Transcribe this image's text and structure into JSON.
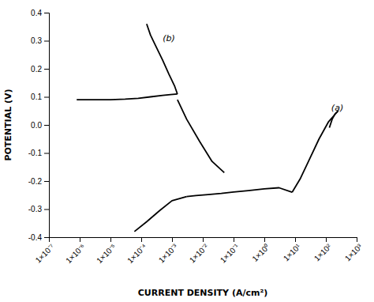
{
  "chart_data": {
    "type": "line",
    "xlabel": "CURRENT DENSITY (A/cm²)",
    "ylabel": "POTENTIAL (V)",
    "log": "x",
    "grid": false,
    "color": "#000000",
    "xlim": [
      1e-07,
      1000.0
    ],
    "ylim": [
      -0.4,
      0.4
    ],
    "xticks": [
      {
        "value": 1e-07,
        "label": "1×10⁻⁷"
      },
      {
        "value": 1e-06,
        "label": "1×10⁻⁶"
      },
      {
        "value": 1e-05,
        "label": "1×10⁻⁵"
      },
      {
        "value": 0.0001,
        "label": "1×10⁻⁴"
      },
      {
        "value": 0.001,
        "label": "1×10⁻³"
      },
      {
        "value": 0.01,
        "label": "1×10⁻²"
      },
      {
        "value": 0.1,
        "label": "1×10⁻¹"
      },
      {
        "value": 1,
        "label": "1×10⁰"
      },
      {
        "value": 10,
        "label": "1×10¹"
      },
      {
        "value": 100,
        "label": "1×10²"
      },
      {
        "value": 1000,
        "label": "1×10³"
      }
    ],
    "yticks": [
      -0.4,
      -0.3,
      -0.2,
      -0.1,
      {
        "value": 0,
        "label": "0.0"
      },
      0.1,
      0.2,
      0.3,
      0.4
    ],
    "series": [
      {
        "x": [
          8e-07,
          2e-06,
          5e-06,
          1e-05
        ],
        "values": [
          0.09,
          0.09,
          0.09,
          0.09
        ]
      },
      {
        "x": [
          1e-05,
          3e-05,
          8e-05,
          0.0002,
          0.0005,
          0.0009,
          0.0015
        ],
        "values": [
          0.09,
          0.092,
          0.095,
          0.1,
          0.105,
          0.108,
          0.11
        ]
      },
      {
        "x": [
          0.0015,
          0.0012,
          0.0008,
          0.0005,
          0.0003,
          0.0002,
          0.00015
        ],
        "values": [
          0.11,
          0.14,
          0.18,
          0.23,
          0.28,
          0.32,
          0.36
        ]
      },
      {
        "x": [
          0.0015,
          0.003,
          0.008,
          0.02,
          0.05
        ],
        "values": [
          0.09,
          0.02,
          -0.06,
          -0.13,
          -0.17
        ]
      },
      {
        "x": [
          0.003,
          0.001,
          0.0004,
          0.00015,
          6e-05
        ],
        "values": [
          -0.255,
          -0.27,
          -0.305,
          -0.345,
          -0.38
        ]
      },
      {
        "x": [
          0.003,
          0.006,
          0.015,
          0.04,
          0.1,
          0.3,
          1.0,
          3.0,
          8.0
        ],
        "values": [
          -0.255,
          -0.252,
          -0.248,
          -0.244,
          -0.239,
          -0.234,
          -0.228,
          -0.224,
          -0.24
        ]
      },
      {
        "x": [
          8.0,
          15.0,
          30.0,
          60.0,
          120.0,
          250.0
        ],
        "values": [
          -0.24,
          -0.19,
          -0.12,
          -0.05,
          0.01,
          0.05
        ]
      },
      {
        "x": [
          250.0,
          200.0,
          160.0,
          130.0
        ],
        "values": [
          0.05,
          0.04,
          0.02,
          -0.01
        ]
      }
    ],
    "annotations": [
      {
        "text": "(b)",
        "x": 0.0005,
        "y": 0.3
      },
      {
        "text": "(a)",
        "x": 150,
        "y": 0.05
      }
    ]
  }
}
